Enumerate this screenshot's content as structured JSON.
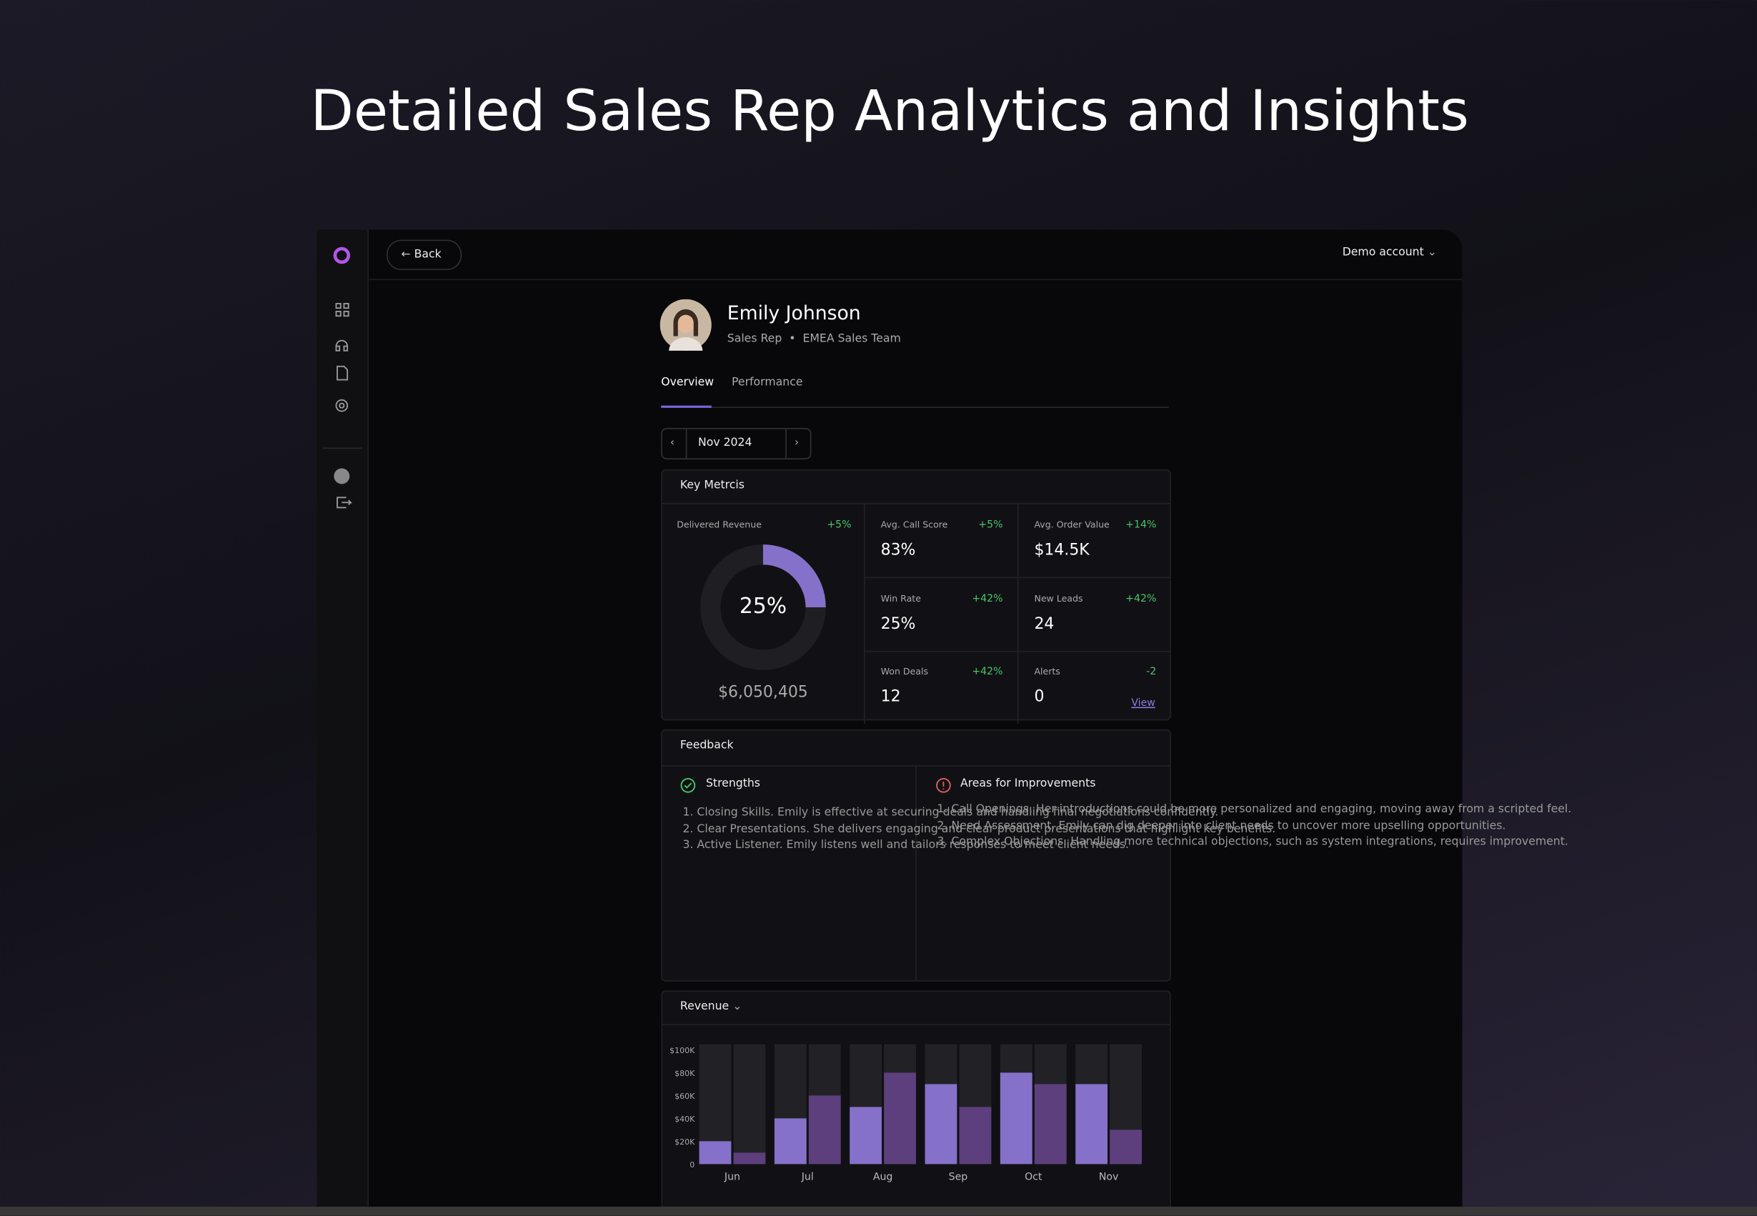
{
  "header": {
    "title": "Detailed Sales Rep Analytics and Insights"
  },
  "topbar": {
    "back": "Back",
    "account": "Demo account"
  },
  "profile": {
    "name": "Emily Johnson",
    "role": "Sales Rep",
    "team": "EMEA Sales Team"
  },
  "tabs": [
    "Overview",
    "Performance"
  ],
  "period": "Nov 2024",
  "key_metrics": {
    "title": "Key Metrcis",
    "delivered": {
      "label": "Delivered Revenue",
      "change": "+5%",
      "percent": 25,
      "percent_label": "25%",
      "amount": "$6,050,405"
    },
    "metrics": [
      {
        "label": "Avg. Call Score",
        "value": "83%",
        "change": "+5%"
      },
      {
        "label": "Avg. Order Value",
        "value": "$14.5K",
        "change": "+14%"
      },
      {
        "label": "Win Rate",
        "value": "25%",
        "change": "+42%"
      },
      {
        "label": "New Leads",
        "value": "24",
        "change": "+42%"
      },
      {
        "label": "Won Deals",
        "value": "12",
        "change": "+42%"
      },
      {
        "label": "Alerts",
        "value": "0",
        "change": "-2",
        "link": "View"
      }
    ]
  },
  "feedback": {
    "title": "Feedback",
    "strengths": {
      "title": "Strengths",
      "items": [
        "Closing Skills. Emily is effective at securing deals and handling final negotiations confidently.",
        "Clear Presentations. She delivers engaging and clear product presentations that highlight key benefits.",
        "Active Listener. Emily listens well and tailors responses to meet client needs."
      ]
    },
    "improvements": {
      "title": "Areas for Improvements",
      "items": [
        "Call Openings. Her introductions could be more personalized and engaging, moving away from a scripted feel.",
        "Need Assessment. Emily can dig deeper into client needs to uncover more upselling opportunities.",
        "Complex Objections. Handling more technical objections, such as system integrations, requires improvement."
      ]
    }
  },
  "chart_data": {
    "type": "bar",
    "title": "Revenue",
    "categories": [
      "Jun",
      "Jul",
      "Aug",
      "Sep",
      "Oct",
      "Nov"
    ],
    "series": [
      {
        "color": "#8571c9",
        "values": [
          20000,
          40000,
          50000,
          70000,
          80000,
          70000
        ]
      },
      {
        "color": "#5e3f7d",
        "values": [
          10000,
          60000,
          80000,
          50000,
          70000,
          30000
        ]
      }
    ],
    "ylim": [
      0,
      100000
    ],
    "yticks": [
      0,
      {
        "value": 20000,
        "label": "$20K"
      },
      {
        "value": 40000,
        "label": "$40K"
      },
      {
        "value": 60000,
        "label": "$60K"
      },
      {
        "value": 80000,
        "label": "$80K"
      },
      {
        "value": 100000,
        "label": "$100K"
      }
    ]
  }
}
